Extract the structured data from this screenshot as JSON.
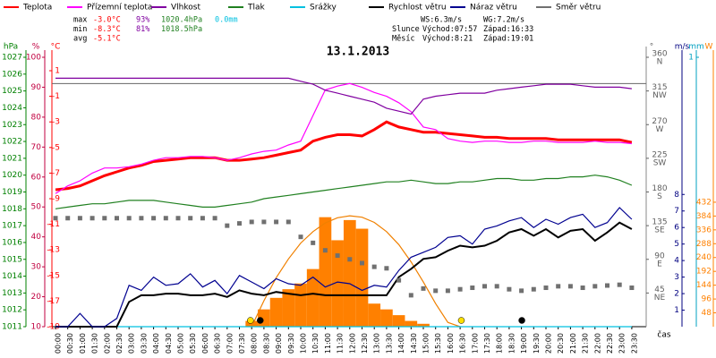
{
  "chart_data": {
    "type": "line",
    "title": "13.1.2013",
    "x_label": "čas",
    "x": [
      "00:00",
      "00:30",
      "01:00",
      "01:30",
      "02:00",
      "02:30",
      "03:00",
      "03:30",
      "04:00",
      "04:30",
      "05:00",
      "05:30",
      "06:00",
      "06:30",
      "07:00",
      "07:30",
      "08:00",
      "08:30",
      "09:00",
      "09:30",
      "10:00",
      "10:30",
      "11:00",
      "11:30",
      "12:00",
      "12:30",
      "13:00",
      "13:30",
      "14:00",
      "14:30",
      "15:00",
      "15:30",
      "16:00",
      "16:30",
      "17:00",
      "17:30",
      "18:00",
      "18:30",
      "19:00",
      "19:30",
      "20:00",
      "20:30",
      "21:00",
      "21:30",
      "22:00",
      "22:30",
      "23:00",
      "23:30"
    ],
    "axes": [
      {
        "label": "hPa",
        "color": "#008000",
        "ylim": [
          1011,
          1027
        ],
        "yticks": [
          1011,
          1012,
          1013,
          1014,
          1015,
          1016,
          1017,
          1018,
          1019,
          1020,
          1021,
          1022,
          1023,
          1024,
          1025,
          1026,
          1027
        ]
      },
      {
        "label": "%",
        "color": "#c00040",
        "ylim": [
          10,
          100
        ],
        "yticks": [
          10,
          20,
          30,
          40,
          50,
          60,
          70,
          80,
          90,
          100
        ]
      },
      {
        "label": "°C",
        "color": "#ff0000",
        "ylim": [
          -19,
          2.05
        ],
        "yticks": [
          -19,
          -17,
          -15,
          -13,
          -11,
          -9,
          -7,
          -5,
          -3,
          -1,
          1
        ],
        "ref_lines": [
          0
        ]
      },
      {
        "label": "°",
        "color": "#606060",
        "ylim": [
          0,
          360
        ],
        "yticks": [
          45,
          90,
          135,
          180,
          225,
          270,
          315,
          360
        ],
        "compass": [
          "NE",
          "E",
          "SE",
          "S",
          "SW",
          "W",
          "NW",
          "N"
        ]
      },
      {
        "label": "m/s",
        "color": "#000080",
        "ylim": [
          0,
          16.3
        ],
        "yticks": [
          1,
          2,
          3,
          4,
          5,
          6,
          7,
          8
        ]
      },
      {
        "label": "mm",
        "color": "#00a0c0",
        "ylim": [
          0,
          1
        ],
        "yticks": [
          1
        ]
      },
      {
        "label": "W",
        "color": "#ff8000",
        "ylim": [
          0,
          935
        ],
        "yticks": [
          48,
          96,
          144,
          192,
          240,
          288,
          336,
          384,
          432
        ]
      }
    ],
    "series": [
      {
        "name": "Teplota",
        "color": "#ff0000",
        "axis": "°C",
        "values": [
          -8.3,
          -8.2,
          -8.0,
          -7.6,
          -7.2,
          -6.9,
          -6.6,
          -6.4,
          -6.1,
          -6.0,
          -5.9,
          -5.8,
          -5.8,
          -5.8,
          -6.0,
          -6.0,
          -5.9,
          -5.8,
          -5.6,
          -5.4,
          -5.2,
          -4.5,
          -4.2,
          -4.0,
          -4.0,
          -4.1,
          -3.6,
          -3.0,
          -3.4,
          -3.6,
          -3.8,
          -3.8,
          -3.9,
          -4.0,
          -4.1,
          -4.2,
          -4.2,
          -4.3,
          -4.3,
          -4.3,
          -4.3,
          -4.4,
          -4.4,
          -4.4,
          -4.4,
          -4.4,
          -4.4,
          -4.6
        ]
      },
      {
        "name": "Přízemní teplota",
        "color": "#ff00ff",
        "axis": "°C",
        "values": [
          -8.6,
          -8.0,
          -7.6,
          -7.0,
          -6.6,
          -6.6,
          -6.5,
          -6.3,
          -6.0,
          -5.8,
          -5.8,
          -5.7,
          -5.7,
          -5.8,
          -6.0,
          -5.8,
          -5.5,
          -5.3,
          -5.2,
          -4.8,
          -4.5,
          -2.5,
          -0.5,
          -0.2,
          0.0,
          -0.3,
          -0.7,
          -1.0,
          -1.5,
          -2.2,
          -3.4,
          -3.6,
          -4.3,
          -4.5,
          -4.6,
          -4.5,
          -4.5,
          -4.6,
          -4.6,
          -4.5,
          -4.5,
          -4.6,
          -4.6,
          -4.6,
          -4.5,
          -4.6,
          -4.6,
          -4.7
        ]
      },
      {
        "name": "Vlhkost",
        "color": "#8000a0",
        "axis": "%",
        "values": [
          93,
          93,
          93,
          93,
          93,
          93,
          93,
          93,
          93,
          93,
          93,
          93,
          93,
          93,
          93,
          93,
          93,
          93,
          93,
          93,
          92,
          91,
          89,
          88,
          87,
          86,
          85,
          83,
          82,
          81,
          86,
          87,
          87.5,
          88,
          88,
          88,
          89,
          89.5,
          90,
          90.5,
          91,
          91,
          91,
          90.5,
          90,
          90,
          90,
          89.5
        ]
      },
      {
        "name": "Tlak",
        "color": "#208020",
        "axis": "hPa",
        "values": [
          1018.0,
          1018.1,
          1018.2,
          1018.3,
          1018.3,
          1018.4,
          1018.5,
          1018.5,
          1018.5,
          1018.4,
          1018.3,
          1018.2,
          1018.1,
          1018.1,
          1018.2,
          1018.3,
          1018.4,
          1018.6,
          1018.7,
          1018.8,
          1018.9,
          1019.0,
          1019.1,
          1019.2,
          1019.3,
          1019.4,
          1019.5,
          1019.6,
          1019.6,
          1019.7,
          1019.6,
          1019.5,
          1019.5,
          1019.6,
          1019.6,
          1019.7,
          1019.8,
          1019.8,
          1019.7,
          1019.7,
          1019.8,
          1019.8,
          1019.9,
          1019.9,
          1020.0,
          1019.9,
          1019.7,
          1019.4
        ]
      },
      {
        "name": "Srážky",
        "color": "#00c0e0",
        "axis": "mm",
        "values": [
          0,
          0,
          0,
          0,
          0,
          0,
          0,
          0,
          0,
          0,
          0,
          0,
          0,
          0,
          0,
          0,
          0,
          0,
          0,
          0,
          0,
          0,
          0,
          0,
          0,
          0,
          0,
          0,
          0,
          0,
          0,
          0,
          0,
          0,
          0,
          0,
          0,
          0,
          0,
          0,
          0,
          0,
          0,
          0,
          0,
          0,
          0,
          0
        ]
      },
      {
        "name": "Rychlost větru",
        "color": "#000000",
        "axis": "m/s",
        "values": [
          0,
          0,
          0,
          0,
          0,
          0,
          1.5,
          1.9,
          1.9,
          2.0,
          2.0,
          1.9,
          1.9,
          2.0,
          1.8,
          2.2,
          2.0,
          1.9,
          2.1,
          2.0,
          1.9,
          2.0,
          1.9,
          1.9,
          1.9,
          1.9,
          1.9,
          1.9,
          3.0,
          3.5,
          4.1,
          4.2,
          4.6,
          4.9,
          4.8,
          4.9,
          5.2,
          5.7,
          5.9,
          5.5,
          5.9,
          5.4,
          5.8,
          5.9,
          5.2,
          5.7,
          6.3,
          5.9
        ]
      },
      {
        "name": "Náraz větru",
        "color": "#000090",
        "axis": "m/s",
        "values": [
          0,
          0,
          0.8,
          0,
          0,
          0.5,
          2.5,
          2.2,
          3.0,
          2.5,
          2.6,
          3.2,
          2.4,
          2.8,
          2.0,
          3.1,
          2.7,
          2.3,
          2.9,
          2.6,
          2.5,
          3.0,
          2.4,
          2.7,
          2.6,
          2.2,
          2.5,
          2.4,
          3.4,
          4.2,
          4.5,
          4.8,
          5.4,
          5.5,
          5.0,
          5.9,
          6.1,
          6.4,
          6.6,
          6.0,
          6.5,
          6.2,
          6.6,
          6.8,
          6.0,
          6.3,
          7.2,
          6.5
        ]
      },
      {
        "name": "Směr větru",
        "color": "#707070",
        "axis": "°",
        "points": true,
        "values": [
          145,
          145,
          145,
          145,
          145,
          145,
          145,
          145,
          145,
          145,
          145,
          145,
          145,
          145,
          135,
          138,
          140,
          140,
          140,
          140,
          120,
          112,
          102,
          95,
          90,
          85,
          80,
          78,
          62,
          42,
          51,
          48,
          48,
          50,
          52,
          54,
          54,
          50,
          48,
          50,
          52,
          54,
          54,
          52,
          54,
          55,
          56,
          52
        ]
      }
    ],
    "radiation": {
      "color": "#ff8000",
      "axis": "W",
      "values": [
        0,
        0,
        0,
        0,
        0,
        0,
        0,
        0,
        0,
        0,
        0,
        0,
        0,
        0,
        0,
        0,
        20,
        60,
        100,
        130,
        150,
        200,
        380,
        300,
        370,
        340,
        80,
        60,
        40,
        20,
        10,
        0,
        0,
        0,
        0,
        0,
        0,
        0,
        0,
        0,
        0,
        0,
        0,
        0,
        0,
        0,
        0,
        0
      ]
    },
    "clear_sky": {
      "color": "#f08000",
      "axis": "W",
      "values": [
        null,
        null,
        null,
        null,
        null,
        null,
        null,
        null,
        null,
        null,
        null,
        null,
        null,
        null,
        null,
        null,
        0,
        90,
        170,
        235,
        290,
        330,
        360,
        378,
        385,
        380,
        362,
        330,
        285,
        225,
        155,
        80,
        15,
        0,
        null,
        null,
        null,
        null,
        null,
        null,
        null,
        null,
        null,
        null,
        null,
        null,
        null,
        null
      ]
    },
    "stats": [
      {
        "label": "max",
        "temperature": "-3.0°C",
        "humidity": "93%",
        "pressure": "1020.4hPa",
        "rain": "0.0mm"
      },
      {
        "label": "min",
        "temperature": "-8.3°C",
        "humidity": "81%",
        "pressure": "1018.5hPa"
      },
      {
        "label": "avg",
        "temperature": "-5.1°C"
      }
    ],
    "wind_summary": [
      "WS:6.3m/s",
      "WG:7.2m/s"
    ],
    "sun": {
      "label": "Slunce",
      "rise": "Východ:07:57",
      "set": "Západ:16:33",
      "color": "#ffe000"
    },
    "moon": {
      "label": "Měsíc",
      "rise": "Východ:8:21",
      "set": "Západ:19:01",
      "color": "#000000"
    }
  }
}
